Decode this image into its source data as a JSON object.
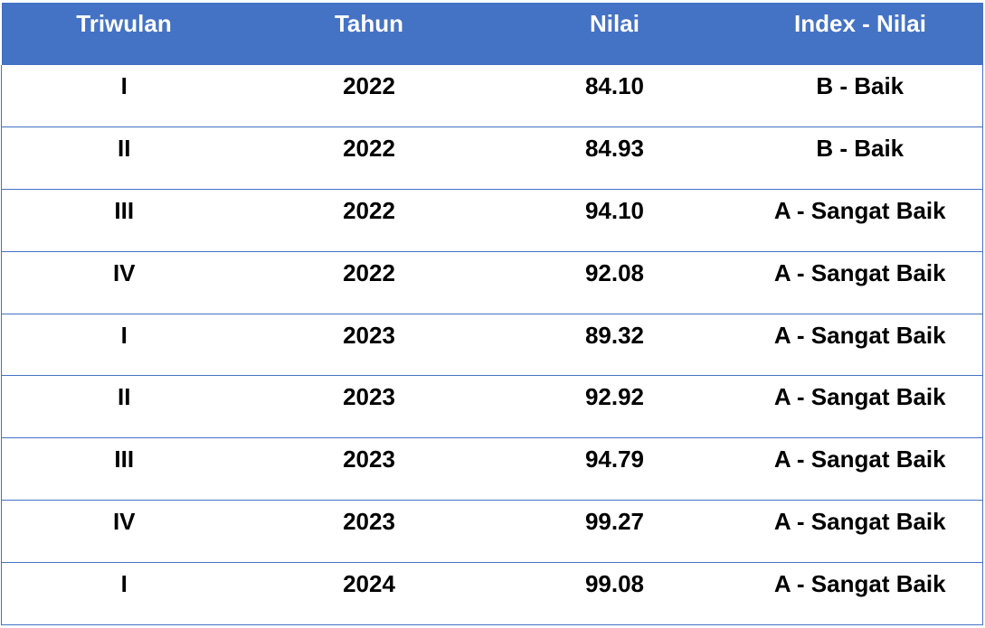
{
  "table": {
    "header_color": "#4472c4",
    "columns": [
      "Triwulan",
      "Tahun",
      "Nilai",
      "Index - Nilai"
    ],
    "rows": [
      [
        "I",
        "2022",
        "84.10",
        "B - Baik"
      ],
      [
        "II",
        "2022",
        "84.93",
        "B - Baik"
      ],
      [
        "III",
        "2022",
        "94.10",
        "A - Sangat Baik"
      ],
      [
        "IV",
        "2022",
        "92.08",
        "A - Sangat Baik"
      ],
      [
        "I",
        "2023",
        "89.32",
        "A - Sangat Baik"
      ],
      [
        "II",
        "2023",
        "92.92",
        "A - Sangat Baik"
      ],
      [
        "III",
        "2023",
        "94.79",
        "A - Sangat Baik"
      ],
      [
        "IV",
        "2023",
        "99.27",
        "A - Sangat Baik"
      ],
      [
        "I",
        "2024",
        "99.08",
        "A - Sangat Baik"
      ]
    ]
  }
}
